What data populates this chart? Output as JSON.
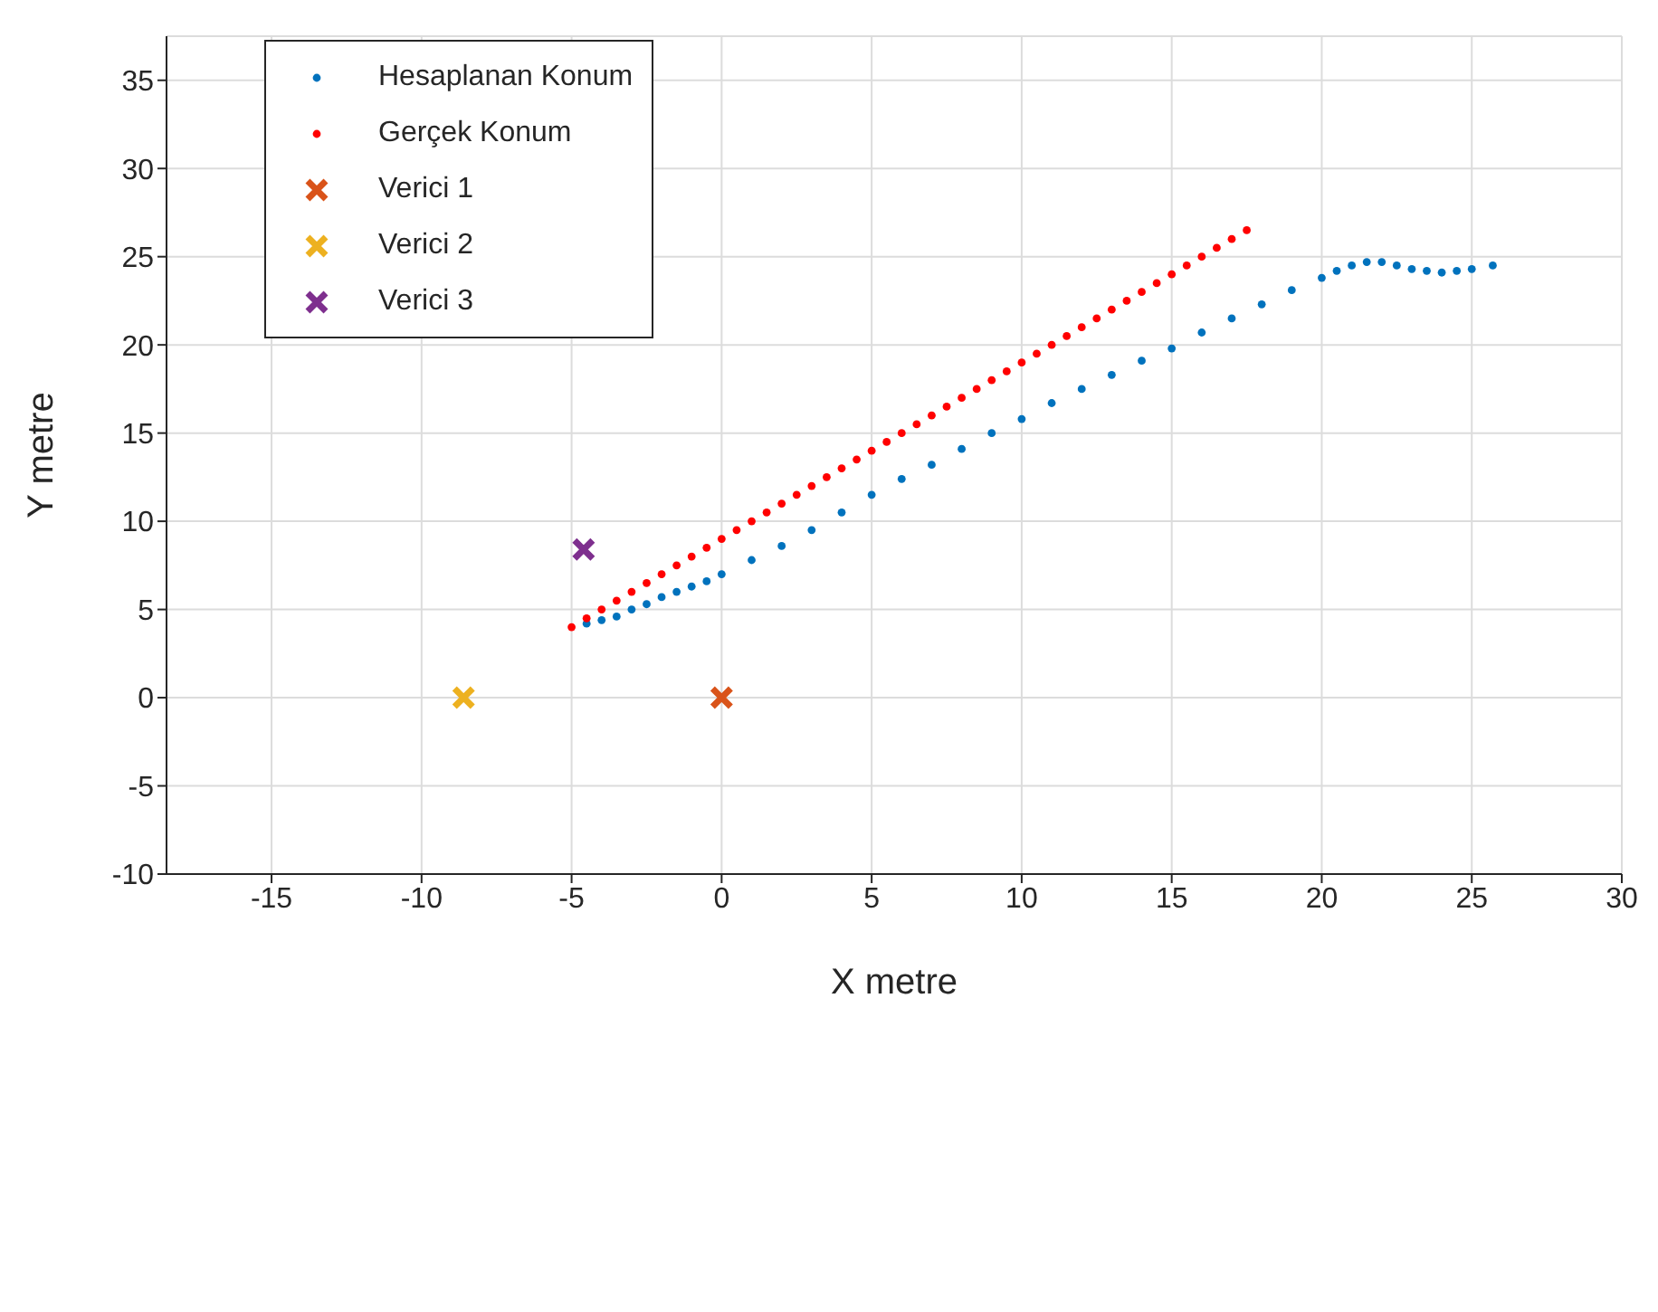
{
  "chart_data": {
    "type": "scatter",
    "xlabel": "X metre",
    "ylabel": "Y metre",
    "xlim": [
      -18.5,
      30
    ],
    "ylim": [
      -10,
      37.5
    ],
    "xticks": [
      -15,
      -10,
      -5,
      0,
      5,
      10,
      15,
      20,
      25,
      30
    ],
    "yticks": [
      -10,
      -5,
      0,
      5,
      10,
      15,
      20,
      25,
      30,
      35
    ],
    "grid": true,
    "legend": "top left",
    "series": [
      {
        "name": "Hesaplanan Konum",
        "color": "#0072bd",
        "marker": "circle",
        "x": [
          -4.5,
          -4,
          -3.5,
          -3,
          -2.5,
          -2,
          -1.5,
          -1,
          -0.5,
          0,
          1,
          2,
          3,
          4,
          5,
          6,
          7,
          8,
          9,
          10,
          11,
          12,
          13,
          14,
          15,
          16,
          17,
          18,
          19,
          20,
          20.5,
          21,
          21.5,
          22,
          22.5,
          23,
          23.5,
          24,
          24.5,
          25,
          25.7
        ],
        "values": [
          4.2,
          4.4,
          4.6,
          5.0,
          5.3,
          5.7,
          6.0,
          6.3,
          6.6,
          7.0,
          7.8,
          8.6,
          9.5,
          10.5,
          11.5,
          12.4,
          13.2,
          14.1,
          15.0,
          15.8,
          16.7,
          17.5,
          18.3,
          19.1,
          19.8,
          20.7,
          21.5,
          22.3,
          23.1,
          23.8,
          24.2,
          24.5,
          24.7,
          24.7,
          24.5,
          24.3,
          24.2,
          24.1,
          24.2,
          24.3,
          24.5
        ]
      },
      {
        "name": "Gerçek Konum",
        "color": "#ff0000",
        "marker": "circle",
        "x": [
          -5,
          -4.5,
          -4,
          -3.5,
          -3,
          -2.5,
          -2,
          -1.5,
          -1,
          -0.5,
          0,
          0.5,
          1,
          1.5,
          2,
          2.5,
          3,
          3.5,
          4,
          4.5,
          5,
          5.5,
          6,
          6.5,
          7,
          7.5,
          8,
          8.5,
          9,
          9.5,
          10,
          10.5,
          11,
          11.5,
          12,
          12.5,
          13,
          13.5,
          14,
          14.5,
          15,
          15.5,
          16,
          16.5,
          17,
          17.5
        ],
        "values": [
          4,
          4.5,
          5,
          5.5,
          6,
          6.5,
          7,
          7.5,
          8,
          8.5,
          9,
          9.5,
          10,
          10.5,
          11,
          11.5,
          12,
          12.5,
          13,
          13.5,
          14,
          14.5,
          15,
          15.5,
          16,
          16.5,
          17,
          17.5,
          18,
          18.5,
          19,
          19.5,
          20,
          20.5,
          21,
          21.5,
          22,
          22.5,
          23,
          23.5,
          24,
          24.5,
          25,
          25.5,
          26,
          26.5
        ]
      },
      {
        "name": "Verici 1",
        "color": "#d95319",
        "marker": "cross",
        "x": [
          0
        ],
        "values": [
          0
        ]
      },
      {
        "name": "Verici 2",
        "color": "#edb120",
        "marker": "cross",
        "x": [
          -8.6
        ],
        "values": [
          0
        ]
      },
      {
        "name": "Verici 3",
        "color": "#7e2f8e",
        "marker": "cross",
        "x": [
          -4.6
        ],
        "values": [
          8.4
        ]
      }
    ]
  }
}
